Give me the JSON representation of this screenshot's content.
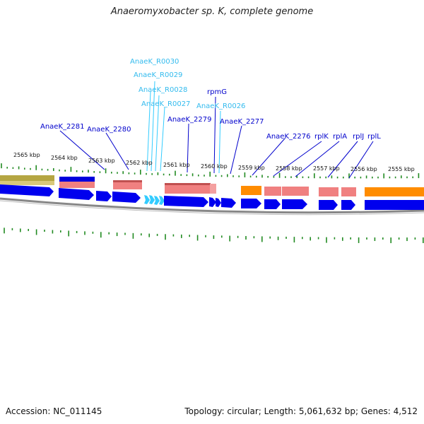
{
  "title": "Anaeromyxobacter sp. K, complete genome",
  "footer": {
    "accession": "Accession: NC_011145",
    "topology": "Topology: circular; Length: 5,061,632 bp; Genes: 4,512"
  },
  "scale_labels": [
    "2565 kbp",
    "2564 kbp",
    "2563 kbp",
    "2562 kbp",
    "2561 kbp",
    "2560 kbp",
    "2559 kbp",
    "2558 kbp",
    "2557 kbp",
    "2556 kbp",
    "2555 kbp"
  ],
  "gene_labels": [
    {
      "text": "AnaeK_R0030",
      "kind": "rna"
    },
    {
      "text": "AnaeK_R0029",
      "kind": "rna"
    },
    {
      "text": "AnaeK_R0028",
      "kind": "rna"
    },
    {
      "text": "AnaeK_R0027",
      "kind": "rna"
    },
    {
      "text": "rpmG",
      "kind": "cds"
    },
    {
      "text": "AnaeK_R0026",
      "kind": "rna"
    },
    {
      "text": "AnaeK_2281",
      "kind": "cds"
    },
    {
      "text": "AnaeK_2280",
      "kind": "cds"
    },
    {
      "text": "AnaeK_2279",
      "kind": "cds"
    },
    {
      "text": "AnaeK_2277",
      "kind": "cds"
    },
    {
      "text": "AnaeK_2276",
      "kind": "cds"
    },
    {
      "text": "rplK",
      "kind": "cds"
    },
    {
      "text": "rplA",
      "kind": "cds"
    },
    {
      "text": "rplJ",
      "kind": "cds"
    },
    {
      "text": "rplL",
      "kind": "cds"
    }
  ],
  "colors": {
    "cds": "#0000ee",
    "rna": "#33bbee",
    "gc_skew": "#228b22",
    "backbone": "#888888",
    "orange_feature": "#ff8c00",
    "pink_feature": "#f08080",
    "olive_feature": "#b5a642"
  }
}
